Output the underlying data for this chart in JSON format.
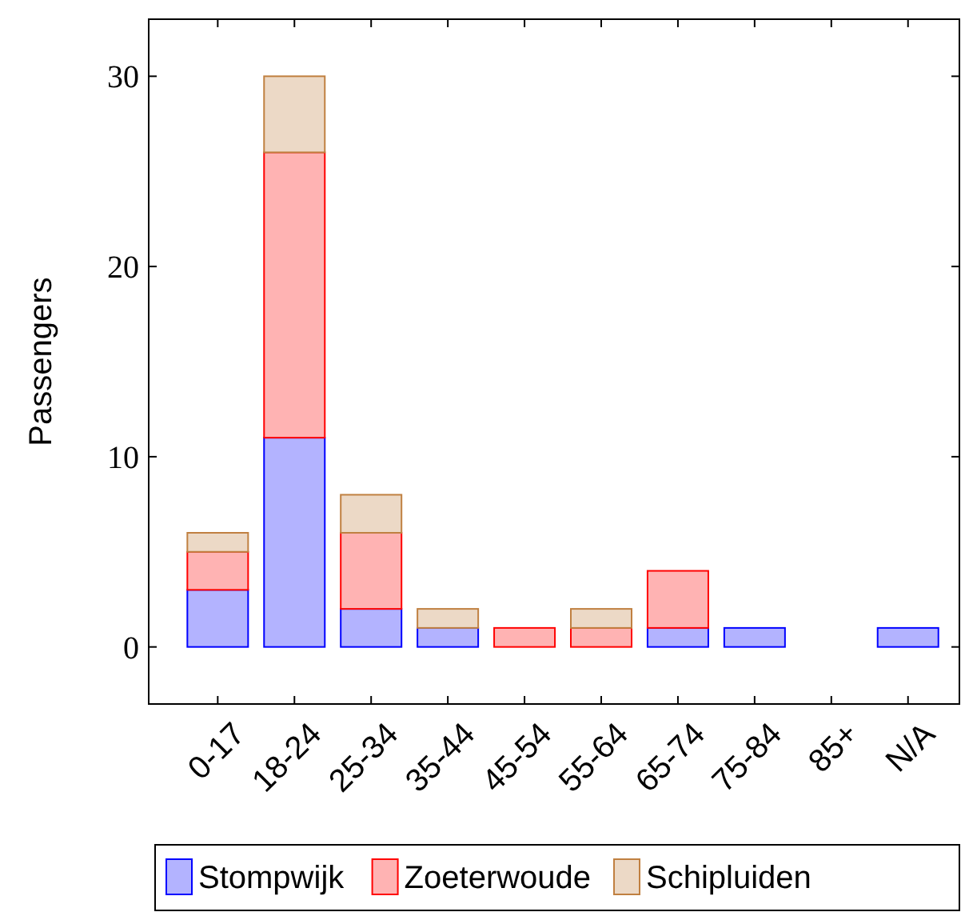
{
  "chart_data": {
    "type": "bar",
    "stacked": true,
    "ylabel": "Passengers",
    "categories": [
      "0-17",
      "18-24",
      "25-34",
      "35-44",
      "45-54",
      "55-64",
      "65-74",
      "75-84",
      "85+",
      "N/A"
    ],
    "series": [
      {
        "name": "Stompwijk",
        "color": "#b3b3ff",
        "values": [
          3,
          11,
          2,
          1,
          0,
          0,
          1,
          1,
          0,
          1
        ]
      },
      {
        "name": "Zoeterwoude",
        "color": "#ffb3b3",
        "values": [
          2,
          15,
          4,
          0,
          1,
          1,
          3,
          0,
          0,
          0
        ]
      },
      {
        "name": "Schipluiden",
        "color": "#ecd9c6",
        "values": [
          1,
          4,
          2,
          1,
          0,
          1,
          0,
          0,
          0,
          0
        ]
      }
    ],
    "ylim": [
      -3,
      33
    ],
    "yticks": [
      0,
      10,
      20,
      30
    ],
    "grid": false,
    "legend": "bottom"
  }
}
